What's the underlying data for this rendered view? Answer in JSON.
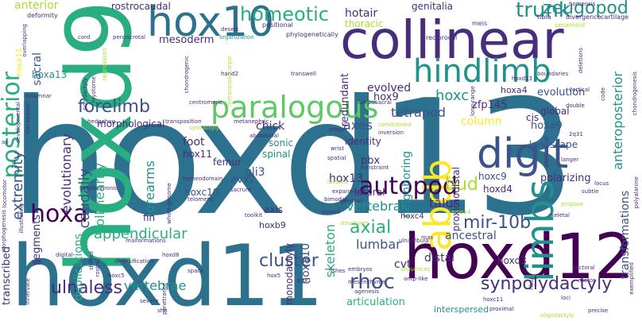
{
  "words": {
    "hoxd13": "hoxd13",
    "hoxd9": "hoxd9",
    "hoxd11": "hoxd11",
    "hoxd12": "hoxd12",
    "collinear": "collinear",
    "hox10": "hox10",
    "digit": "digit",
    "hindlimb": "hindlimb",
    "limbs": "limbs",
    "abdb": "abdb",
    "paralogous": "paralogous",
    "posterior": "posterior",
    "autopod": "autopod",
    "hoxa": "hoxa",
    "forelimb": "forelimb",
    "homeotic": "homeotic",
    "zeugopod": "zeugopod",
    "trunk": "trunk",
    "synpolydactyly": "synpolydactyly",
    "mir_10b": "mir-10b",
    "cluster": "cluster",
    "rhoc": "rhoc",
    "ulnaless": "ulnaless",
    "vertebrae": "vertebrae",
    "appendicular": "appendicular",
    "hoxc": "hoxc",
    "bud": "bud",
    "tetrapod": "tetrapod",
    "axes": "axes",
    "vertebral": "vertebral",
    "axial": "axial",
    "lumbar": "lumbar",
    "extremity": "extremity",
    "caudally": "caudally",
    "evolutionary": "evolutionary",
    "collinearity": "collinearity",
    "forearms": "forearms",
    "skeleton": "skeleton",
    "anteroposterior": "anteroposterior",
    "transformations": "transformations",
    "hoxa10": "hoxa10",
    "sacral": "sacral",
    "hoxa11": "hoxa11",
    "hoxa13": "hoxa13",
    "anterior": "anterior",
    "rostrocaudal": "rostrocaudal",
    "mesoderm": "mesoderm",
    "hotair": "hotair",
    "genitalia": "genitalia",
    "thoracic": "thoracic",
    "evolved": "evolved",
    "redundant": "redundant",
    "evolution": "evolution",
    "column": "column",
    "chick": "chick",
    "hoxa9": "hoxa9",
    "hoxc9": "hoxc9",
    "hoxd4": "hoxd4",
    "morphological": "morphological",
    "hox9": "hox9",
    "hox13": "hox13",
    "gli3": "gli3",
    "neighboring": "neighboring",
    "pbx": "pbx",
    "talus": "talus",
    "foot": "foot",
    "hox11": "hox11",
    "hoxc10": "hoxc10",
    "evx2": "evx2",
    "ancestral": "ancestral",
    "distal": "distal",
    "hoxd3": "hoxd3",
    "monodactyly": "monodactyly",
    "cvt": "cvt",
    "proximodistal": "proximodistal",
    "landscape": "landscape",
    "duplications": "duplications",
    "segments": "segments",
    "transcribed": "transcribed",
    "zfp145": "zfp145",
    "identity": "identity",
    "global": "global",
    "sonic": "sonic",
    "spinal": "spinal",
    "lateral": "lateral",
    "femur": "femur",
    "polarizing": "polarizing",
    "articulation": "articulation",
    "interspersed": "interspersed",
    "fin": "fin",
    "axis": "axis",
    "cis": "cis",
    "hoxa4": "hoxa4",
    "hoxb9": "hoxb9",
    "hoxc4": "hoxc4",
    "deformity": "deformity",
    "positional": "positional",
    "tibia": "tibia",
    "homeosis": "homeosis",
    "divergence": "divergence",
    "cartilage": "cartilage",
    "reciprocal": "reciprocal",
    "meis": "meis",
    "sesamoid": "sesamoid",
    "phylogenetically": "phylogenetically",
    "cord": "cord",
    "penoscrotal": "penoscrotal",
    "desert": "desert",
    "organization": "organization",
    "overlapping": "overlapping",
    "columnar": "columnar",
    "developmental": "developmental",
    "inactivation": "inactivation",
    "hedgehog": "hedgehog",
    "ap": "ap",
    "locomotor": "locomotor",
    "morphogenesis": "morphogenesis",
    "illustrating": "illustrating",
    "cmt": "cmt",
    "innervate": "innervate",
    "digital": "digital",
    "polydactyly": "polydactyly",
    "myotome": "myotome",
    "regression": "regression",
    "chondrogenic": "chondrogenic",
    "hand2": "hand2",
    "centromeric": "centromeric",
    "metacarpal_carpal": "metacarpal-carpal",
    "transwell": "transwell",
    "lumbosacral": "lumbosacral",
    "constrained": "constrained",
    "heterochronic": "heterochronic",
    "transposition": "transposition",
    "syndactyly": "syndactyly",
    "abdominal": "abdominal",
    "metanephric": "metanephric",
    "proper": "proper",
    "inversion": "inversion",
    "wrist": "wrist",
    "spatial": "spatial",
    "constraint": "constraint",
    "homeodomain": "homeodomain",
    "telomeric": "telomeric",
    "whole_genome": "whole-genome",
    "sacrum": "sacrum",
    "expansions": "expansions",
    "located": "located",
    "geminin": "geminin",
    "bimodal": "bimodal",
    "shared": "shared",
    "structures": "structures",
    "toolkit": "toolkit",
    "malformations": "malformations",
    "hoxd8": "hoxd8",
    "diversification": "diversification",
    "space": "space",
    "severe": "severe",
    "shh": "shh",
    "shifted": "shifted",
    "rostral": "rostral",
    "hoxc5": "hoxc5",
    "penetrance": "penetrance",
    "hox5": "hox5",
    "pitx1": "pitx1",
    "embryos": "embryos",
    "mesenchyme": "mesenchyme",
    "agenesis": "agenesis",
    "fishes": "fishes",
    "antp_like": "antp-like",
    "sequences": "sequences",
    "rnas": "rnas",
    "ulnarfibula": "ulnarfibula",
    "hoxc11": "hoxc11",
    "proximal": "proximal",
    "ribs": "ribs",
    "loci": "loci",
    "pectoral": "pectoral",
    "motor": "motor",
    "precise": "precise",
    "oligodactyly": "oligodactyly",
    "exemplified": "exemplified",
    "polyalanine": "polyalanine",
    "chondrogenesis": "chondrogenesis",
    "deletions": "deletions",
    "boundaries": "boundaries",
    "vertical": "vertical",
    "double": "double",
    "langer": "langer",
    "code": "code",
    "locus": "locus",
    "subtle": "subtle",
    "propose": "propose",
    "skeletal": "skeletal",
    "hoxd13_sm": "hoxd13",
    "2q31": "2q31",
    "emp14": "emp14",
    "long_range": "long-range"
  },
  "colors": {
    "dark_purple": "#440154",
    "indigo": "#472d7b",
    "blue": "#3b528b",
    "steel": "#2c728e",
    "teal": "#21918c",
    "green_teal": "#28ae80",
    "green": "#5ec962",
    "lime": "#addc30",
    "yellow": "#fde725"
  }
}
